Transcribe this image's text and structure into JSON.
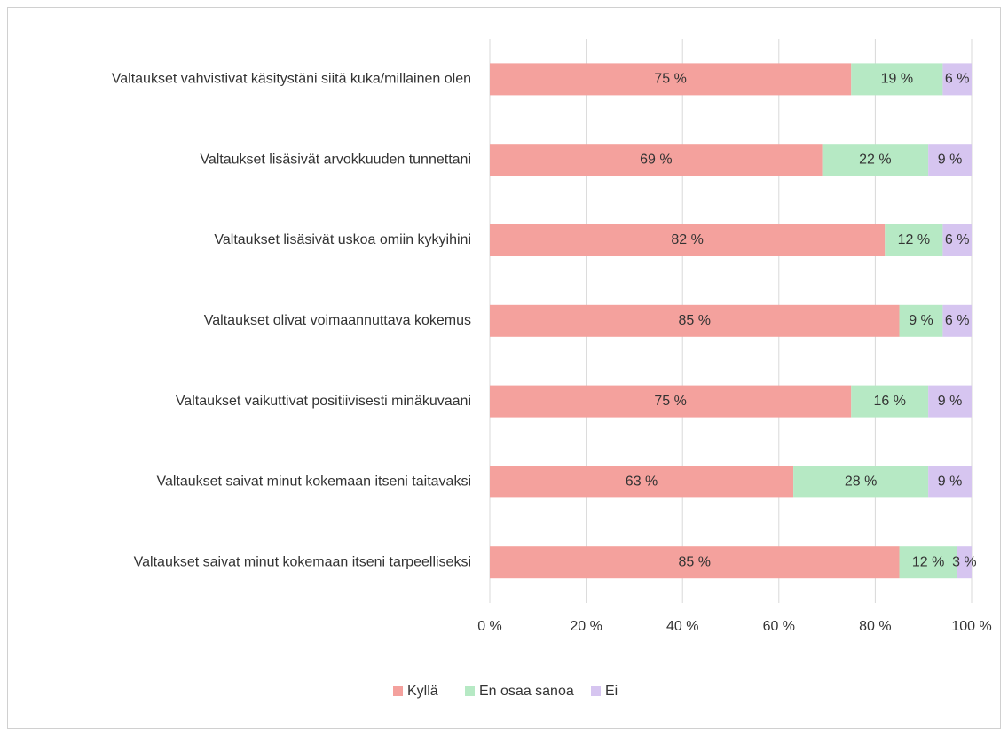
{
  "chart_data": {
    "type": "stacked_barh",
    "categories": [
      "Valtaukset vahvistivat käsitystäni siitä kuka/millainen olen",
      "Valtaukset lisäsivät arvokkuuden tunnettani",
      "Valtaukset lisäsivät uskoa omiin kykyihini",
      "Valtaukset olivat voimaannuttava kokemus",
      "Valtaukset vaikuttivat positiivisesti minäkuvaani",
      "Valtaukset saivat minut kokemaan itseni taitavaksi",
      "Valtaukset saivat minut kokemaan itseni tarpeelliseksi"
    ],
    "series": [
      {
        "name": "Kyllä",
        "color": "#f4a19d",
        "values": [
          75,
          69,
          82,
          85,
          75,
          63,
          85
        ],
        "value_labels": [
          "75 %",
          "69 %",
          "82 %",
          "85 %",
          "75 %",
          "63 %",
          "85 %"
        ]
      },
      {
        "name": "En osaa sanoa",
        "color": "#b6e9c4",
        "values": [
          19,
          22,
          12,
          9,
          16,
          28,
          12
        ],
        "value_labels": [
          "19 %",
          "22 %",
          "12 %",
          "9 %",
          "16 %",
          "28 %",
          "12 %"
        ]
      },
      {
        "name": "Ei",
        "color": "#d6c5f0",
        "values": [
          6,
          9,
          6,
          6,
          9,
          9,
          3
        ],
        "value_labels": [
          "6 %",
          "9 %",
          "6 %",
          "6 %",
          "9 %",
          "9 %",
          "3 %"
        ]
      }
    ],
    "xlim": [
      0,
      100
    ],
    "xticks": [
      {
        "value": 0,
        "label": "0 %"
      },
      {
        "value": 20,
        "label": "20 %"
      },
      {
        "value": 40,
        "label": "40 %"
      },
      {
        "value": 60,
        "label": "60 %"
      },
      {
        "value": 80,
        "label": "80 %"
      },
      {
        "value": 100,
        "label": "100 %"
      }
    ],
    "grid": true,
    "legend": "bottom"
  }
}
